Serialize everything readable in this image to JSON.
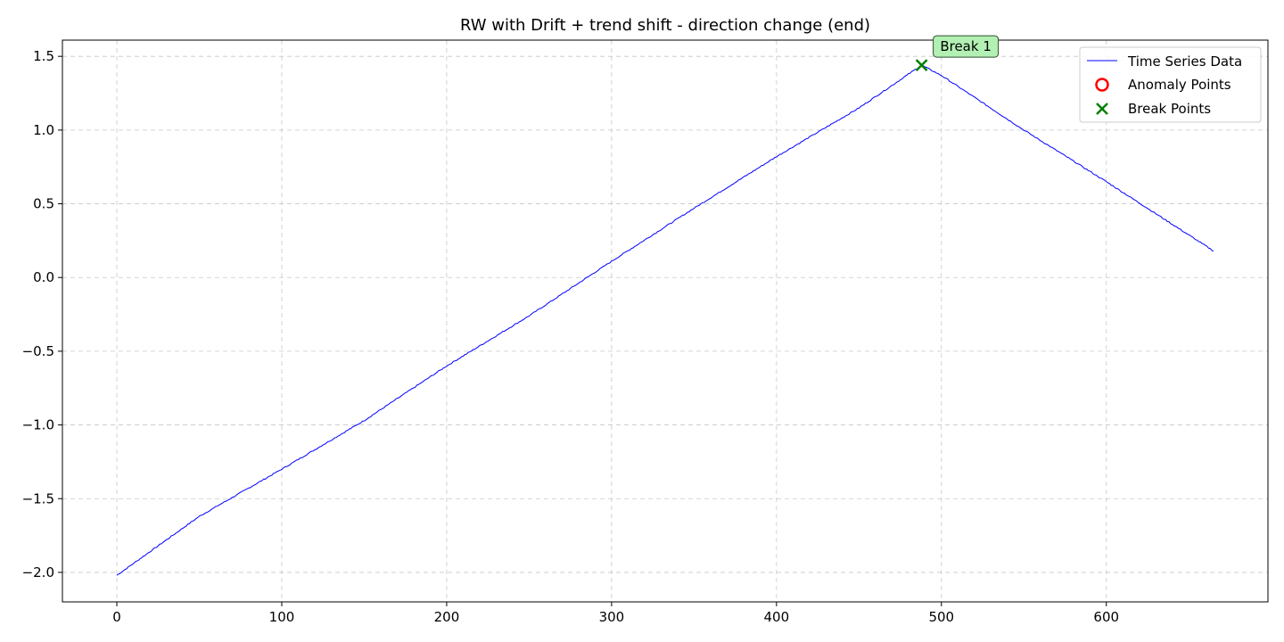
{
  "chart_data": {
    "type": "line",
    "title": "RW with Drift + trend shift - direction change (end)",
    "xlabel": "",
    "ylabel": "",
    "xlim": [
      -33,
      698
    ],
    "ylim": [
      -2.2,
      1.61
    ],
    "xticks": [
      0,
      100,
      200,
      300,
      400,
      500,
      600
    ],
    "yticks": [
      -2.0,
      -1.5,
      -1.0,
      -0.5,
      0.0,
      0.5,
      1.0,
      1.5
    ],
    "xtick_labels": [
      "0",
      "100",
      "200",
      "300",
      "400",
      "500",
      "600"
    ],
    "ytick_labels": [
      "−2.0",
      "−1.5",
      "−1.0",
      "−0.5",
      "0.0",
      "0.5",
      "1.0",
      "1.5"
    ],
    "grid": true,
    "legend_position": "top-right",
    "series": [
      {
        "name": "Time Series Data",
        "color": "#0000ff",
        "anchors": [
          [
            0,
            -2.02
          ],
          [
            50,
            -1.62
          ],
          [
            100,
            -1.3
          ],
          [
            150,
            -0.97
          ],
          [
            200,
            -0.6
          ],
          [
            250,
            -0.26
          ],
          [
            300,
            0.11
          ],
          [
            350,
            0.47
          ],
          [
            400,
            0.82
          ],
          [
            450,
            1.15
          ],
          [
            488,
            1.44
          ],
          [
            500,
            1.37
          ],
          [
            550,
            1.0
          ],
          [
            600,
            0.65
          ],
          [
            665,
            0.18
          ]
        ]
      }
    ],
    "anomaly_points": {
      "name": "Anomaly Points",
      "color": "#ff0000",
      "points": []
    },
    "break_points": {
      "name": "Break Points",
      "color": "#008000",
      "points": [
        [
          488,
          1.44
        ]
      ]
    },
    "annotations": [
      {
        "text": "Break 1",
        "x": 488,
        "y": 1.44,
        "bg": "#b3f0b3"
      }
    ]
  }
}
